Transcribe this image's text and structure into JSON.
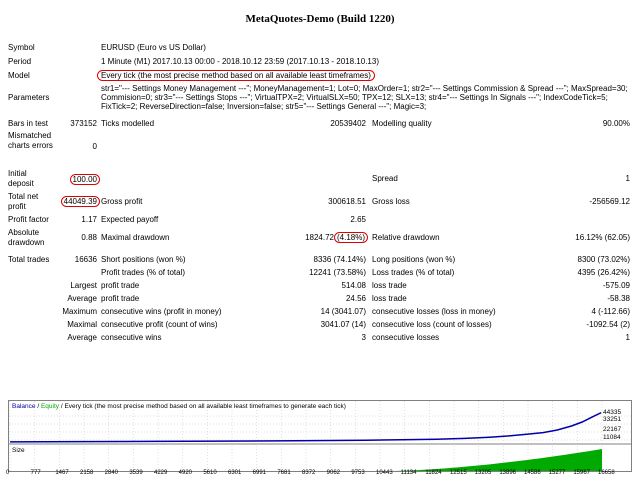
{
  "title": "MetaQuotes-Demo (Build 1220)",
  "symbol": {
    "label": "Symbol",
    "value": "EURUSD (Euro vs US Dollar)"
  },
  "period": {
    "label": "Period",
    "value": "1 Minute (M1) 2017.10.13 00:00 - 2018.10.12 23:59 (2017.10.13 - 2018.10.13)"
  },
  "model": {
    "label": "Model",
    "value": "Every tick (the most precise method based on all available least timeframes)"
  },
  "parameters": {
    "label": "Parameters",
    "value": "str1=\"--- Settings Money Management ---\"; MoneyManagement=1; Lot=0; MaxOrder=1; str2=\"--- Settings Commission & Spread ---\"; MaxSpread=30; Commision=0; str3=\"--- Settings Stops ---\"; VirtualTPX=2; VirtualSLX=50; TPX=12; SLX=13; str4=\"--- Settings In Signals ---\"; IndexCodeTick=5; FixTick=2; ReverseDirection=false; Inversion=false; str5=\"--- Settings General ---\"; Magic=3;"
  },
  "bars": {
    "label": "Bars in test",
    "value": "373152",
    "ticks_label": "Ticks modelled",
    "ticks_value": "20539402",
    "quality_label": "Modelling quality",
    "quality_value": "90.00%"
  },
  "mismatched": {
    "label": "Mismatched charts errors",
    "value": "0"
  },
  "deposit": {
    "label": "Initial deposit",
    "value": "100.00",
    "spread_label": "Spread",
    "spread_value": "1"
  },
  "netprofit": {
    "label": "Total net profit",
    "value": "44049.39",
    "gp_label": "Gross profit",
    "gp_value": "300618.51",
    "gl_label": "Gross loss",
    "gl_value": "-256569.12"
  },
  "pf": {
    "label": "Profit factor",
    "value": "1.17",
    "ep_label": "Expected payoff",
    "ep_value": "2.65"
  },
  "dd": {
    "label": "Absolute drawdown",
    "value": "0.88",
    "max_label": "Maximal drawdown",
    "max_value": "1824.72",
    "max_pct": "(4.18%)",
    "rel_label": "Relative drawdown",
    "rel_value": "16.12% (62.05)"
  },
  "trades": {
    "label": "Total trades",
    "value": "16636",
    "short_label": "Short positions (won %)",
    "short_value": "8336 (74.14%)",
    "long_label": "Long positions (won %)",
    "long_value": "8300 (73.02%)"
  },
  "pt": {
    "label": "Profit trades (% of total)",
    "value": "12241 (73.58%)",
    "lt_label": "Loss trades (% of total)",
    "lt_value": "4395 (26.42%)"
  },
  "largest": {
    "label": "Largest",
    "pt_label": "profit trade",
    "pt_value": "514.08",
    "lt_label": "loss trade",
    "lt_value": "-575.09"
  },
  "average": {
    "label": "Average",
    "pt_label": "profit trade",
    "pt_value": "24.56",
    "lt_label": "loss trade",
    "lt_value": "-58.38"
  },
  "maxcons": {
    "label": "Maximum",
    "w_label": "consecutive wins (profit in money)",
    "w_value": "14 (3041.07)",
    "l_label": "consecutive losses (loss in money)",
    "l_value": "4 (-112.66)"
  },
  "maximal": {
    "label": "Maximal",
    "w_label": "consecutive profit (count of wins)",
    "w_value": "3041.07 (14)",
    "l_label": "consecutive loss (count of losses)",
    "l_value": "-1092.54 (2)"
  },
  "avgcons": {
    "label": "Average",
    "w_label": "consecutive wins",
    "w_value": "3",
    "l_label": "consecutive losses",
    "l_value": "1"
  },
  "chart_data": {
    "type": "line",
    "legend": {
      "balance": "Balance",
      "sep": "/",
      "equity": "Equity",
      "rest": "/ Every tick (the most precise method based on all available least timeframes to generate each tick)"
    },
    "y_ticks": [
      "44335",
      "33251",
      "22167",
      "11084"
    ],
    "size_label": "Size",
    "x_ticks": [
      "0",
      "777",
      "1467",
      "2158",
      "2840",
      "3539",
      "4229",
      "4920",
      "5610",
      "6301",
      "6991",
      "7681",
      "8372",
      "9062",
      "9753",
      "10443",
      "11134",
      "11824",
      "12515",
      "13205",
      "13896",
      "14586",
      "15277",
      "15967",
      "16658"
    ],
    "balance_x": [
      0,
      2000,
      4000,
      6000,
      7500,
      9000,
      10000,
      11000,
      12000,
      12800,
      13500,
      14000,
      14500,
      15000,
      15400,
      15800,
      16100,
      16400,
      16636
    ],
    "balance_y": [
      100,
      500,
      900,
      1300,
      1700,
      2200,
      2700,
      3300,
      4200,
      5500,
      7200,
      9000,
      11500,
      14000,
      18000,
      24000,
      30000,
      38000,
      44049
    ],
    "ylim": [
      0,
      48000
    ],
    "xlim": [
      0,
      16658
    ],
    "colors": {
      "balance": "#0000aa",
      "equity": "#00aa00",
      "grid": "#c0c0c0"
    }
  }
}
